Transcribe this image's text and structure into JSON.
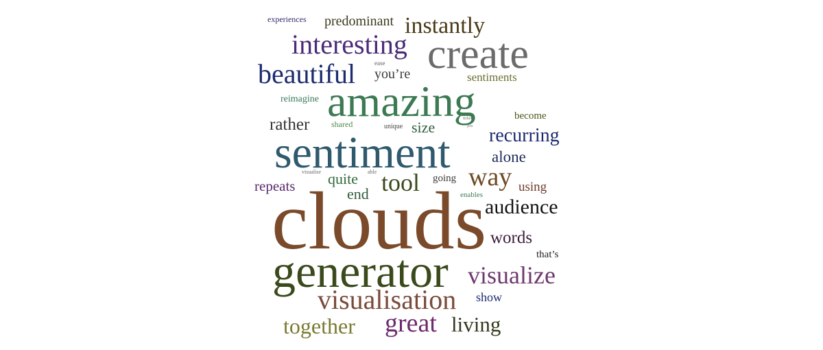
{
  "words": [
    {
      "text": "experiences",
      "color": "#2e2a6e"
    },
    {
      "text": "predominant",
      "color": "#3a3a1c"
    },
    {
      "text": "instantly",
      "color": "#4a3a18"
    },
    {
      "text": "interesting",
      "color": "#4b2a78"
    },
    {
      "text": "create",
      "color": "#6b6b6b"
    },
    {
      "text": "beautiful",
      "color": "#1c2a6e"
    },
    {
      "text": "ease",
      "color": "#6a5a6e"
    },
    {
      "text": "you’re",
      "color": "#3a3a3a"
    },
    {
      "text": "sentiments",
      "color": "#6e6e32"
    },
    {
      "text": "amazing",
      "color": "#3b7a52"
    },
    {
      "text": "reimagine",
      "color": "#3b7a5a"
    },
    {
      "text": "become",
      "color": "#4a5a1c"
    },
    {
      "text": "rather",
      "color": "#333333"
    },
    {
      "text": "shared",
      "color": "#4f8a4f"
    },
    {
      "text": "unique",
      "color": "#444444"
    },
    {
      "text": "size",
      "color": "#2f5a3c"
    },
    {
      "text": "tickets",
      "color": "#6a6a6a"
    },
    {
      "text": "jira",
      "color": "#6a6a6a"
    },
    {
      "text": "recurring",
      "color": "#1c2a6e"
    },
    {
      "text": "sentiment",
      "color": "#2f5a6e"
    },
    {
      "text": "alone",
      "color": "#1c2a5a"
    },
    {
      "text": "visualise",
      "color": "#6a6a6a"
    },
    {
      "text": "able",
      "color": "#6a6a6a"
    },
    {
      "text": "quite",
      "color": "#2f6a3c"
    },
    {
      "text": "tool",
      "color": "#3a4a1c"
    },
    {
      "text": "going",
      "color": "#3a3a3a"
    },
    {
      "text": "way",
      "color": "#6e4a22"
    },
    {
      "text": "repeats",
      "color": "#5a2a6e"
    },
    {
      "text": "end",
      "color": "#2f5a3c"
    },
    {
      "text": "using",
      "color": "#6e3a2a"
    },
    {
      "text": "enables",
      "color": "#3b7a52"
    },
    {
      "text": "audience",
      "color": "#111111"
    },
    {
      "text": "clouds",
      "color": "#7a4a2a"
    },
    {
      "text": "words",
      "color": "#3a1c3a"
    },
    {
      "text": "that’s",
      "color": "#222222"
    },
    {
      "text": "generator",
      "color": "#3a4a1c"
    },
    {
      "text": "visualize",
      "color": "#6e3a6e"
    },
    {
      "text": "visualisation",
      "color": "#7a4a3a"
    },
    {
      "text": "show",
      "color": "#1c2a6e"
    },
    {
      "text": "together",
      "color": "#7a7a32"
    },
    {
      "text": "great",
      "color": "#6e2a6e"
    },
    {
      "text": "living",
      "color": "#2f3a1c"
    }
  ]
}
